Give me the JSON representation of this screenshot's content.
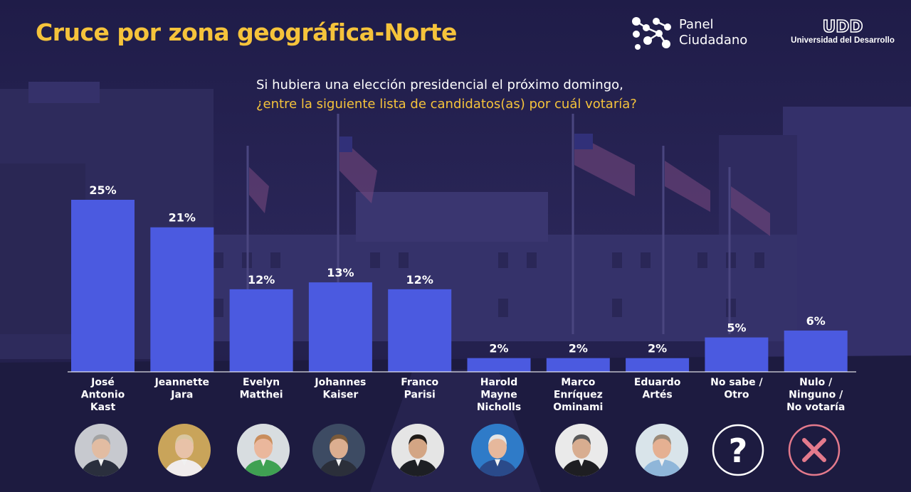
{
  "title": "Cruce por zona geográfica-Norte",
  "question": {
    "line1": "Si hubiera una elección presidencial el próximo domingo,",
    "line2": "¿entre la siguiente lista de candidatos(as) por cuál votaría?"
  },
  "logos": {
    "panel_line1": "Panel",
    "panel_line2": "Ciudadano",
    "udd_mark": "UDD",
    "udd_name": "Universidad del Desarrollo"
  },
  "colors": {
    "bar": "#4b5ae0",
    "title": "#f5c33b",
    "question_highlight": "#f5c33b",
    "background": "#232050",
    "no_votaria_icon": "#e47a8c"
  },
  "chart_data": {
    "type": "bar",
    "title": "Cruce por zona geográfica-Norte",
    "categories": [
      "José Antonio Kast",
      "Jeannette Jara",
      "Evelyn Matthei",
      "Johannes Kaiser",
      "Franco Parisi",
      "Harold Mayne Nicholls",
      "Marco Enríquez Ominami",
      "Eduardo Artés",
      "No sabe / Otro",
      "Nulo / Ninguno / No votaría"
    ],
    "category_lines": [
      [
        "José",
        "Antonio",
        "Kast"
      ],
      [
        "Jeannette",
        "Jara"
      ],
      [
        "Evelyn",
        "Matthei"
      ],
      [
        "Johannes",
        "Kaiser"
      ],
      [
        "Franco",
        "Parisi"
      ],
      [
        "Harold",
        "Mayne",
        "Nicholls"
      ],
      [
        "Marco",
        "Enríquez",
        "Ominami"
      ],
      [
        "Eduardo",
        "Artés"
      ],
      [
        "No sabe /",
        "Otro"
      ],
      [
        "Nulo /",
        "Ninguno /",
        "No votaría"
      ]
    ],
    "values": [
      25,
      21,
      12,
      13,
      12,
      2,
      2,
      2,
      5,
      6
    ],
    "value_labels": [
      "25%",
      "21%",
      "12%",
      "13%",
      "12%",
      "2%",
      "2%",
      "2%",
      "5%",
      "6%"
    ],
    "unit": "%",
    "ylim": [
      0,
      25
    ],
    "grid": false,
    "legend": "none"
  },
  "avatars": [
    {
      "name": "José Antonio Kast",
      "icon": "photo-kast",
      "bg": "#c7c9cf",
      "skin": "#e2bca2",
      "hair": "#a3a3a3",
      "clothes": "#2a2f3d"
    },
    {
      "name": "Jeannette Jara",
      "icon": "photo-jara",
      "bg": "#c9a45a",
      "skin": "#e8c2a8",
      "hair": "#d9c7a0",
      "clothes": "#f0ecec"
    },
    {
      "name": "Evelyn Matthei",
      "icon": "photo-matthei",
      "bg": "#d8dde0",
      "skin": "#eab79c",
      "hair": "#c98d5c",
      "clothes": "#3fa152"
    },
    {
      "name": "Johannes Kaiser",
      "icon": "photo-kaiser",
      "bg": "#3d4b63",
      "skin": "#dcae90",
      "hair": "#7a5a3a",
      "clothes": "#2b2f3a"
    },
    {
      "name": "Franco Parisi",
      "icon": "photo-parisi",
      "bg": "#e5e5e5",
      "skin": "#d3a584",
      "hair": "#1f1b18",
      "clothes": "#1d1f24"
    },
    {
      "name": "Harold Mayne Nicholls",
      "icon": "photo-mayne-nicholls",
      "bg": "#2f7bc8",
      "skin": "#e6b89c",
      "hair": "#e4e4e4",
      "clothes": "#2a4a8a"
    },
    {
      "name": "Marco Enríquez Ominami",
      "icon": "photo-enriquez-ominami",
      "bg": "#eaeaea",
      "skin": "#d8ad90",
      "hair": "#5a5a5a",
      "clothes": "#1e1e22"
    },
    {
      "name": "Eduardo Artés",
      "icon": "photo-artes",
      "bg": "#d9e4ea",
      "skin": "#e5b092",
      "hair": "#9b8a78",
      "clothes": "#8fb6d9"
    },
    {
      "name": "No sabe / Otro",
      "icon": "question-mark-icon"
    },
    {
      "name": "Nulo / Ninguno / No votaría",
      "icon": "cross-icon"
    }
  ]
}
